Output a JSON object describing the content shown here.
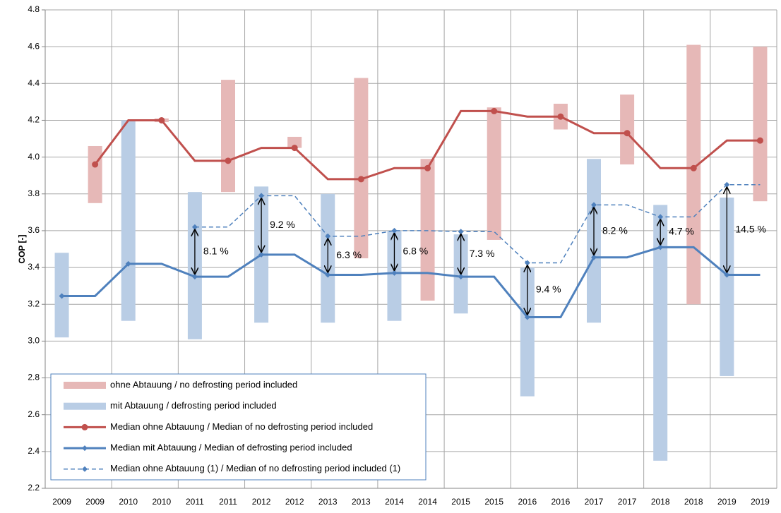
{
  "chart_data": {
    "type": "line",
    "y_label": "COP [-]",
    "categories": [
      "2009",
      "2009",
      "2010",
      "2010",
      "2011",
      "2011",
      "2012",
      "2012",
      "2013",
      "2013",
      "2014",
      "2014",
      "2015",
      "2015",
      "2016",
      "2016",
      "2017",
      "2017",
      "2018",
      "2018",
      "2019",
      "2019"
    ],
    "ylim": [
      2.2,
      4.8
    ],
    "yticks": [
      2.2,
      2.4,
      2.6,
      2.8,
      {
        "value": 3,
        "label": "3.0"
      },
      3.2,
      3.4,
      3.6,
      3.8,
      {
        "value": 4,
        "label": "4.0"
      },
      4.2,
      4.4,
      4.6,
      4.8
    ],
    "grid": true,
    "series": [
      {
        "name": "ohne Abtauung / no defrosting period included",
        "type": "range",
        "color": "#e6b8b7",
        "low": [
          null,
          3.75,
          null,
          4.19,
          null,
          3.81,
          null,
          4.05,
          null,
          3.45,
          null,
          3.22,
          null,
          3.55,
          null,
          4.15,
          null,
          3.96,
          null,
          3.2,
          null,
          3.76
        ],
        "high": [
          null,
          4.06,
          null,
          4.21,
          null,
          4.42,
          null,
          4.11,
          null,
          4.43,
          null,
          3.99,
          null,
          4.27,
          null,
          4.29,
          null,
          4.34,
          null,
          4.61,
          null,
          4.6
        ]
      },
      {
        "name": "mit Abtauung / defrosting period included",
        "type": "range",
        "color": "#b9cde5",
        "low": [
          3.02,
          null,
          3.11,
          null,
          3.01,
          null,
          3.1,
          null,
          3.1,
          null,
          3.11,
          null,
          3.15,
          null,
          2.7,
          null,
          3.1,
          null,
          2.35,
          null,
          2.81,
          null
        ],
        "high": [
          3.48,
          null,
          4.2,
          null,
          3.81,
          null,
          3.84,
          null,
          3.8,
          null,
          3.6,
          null,
          3.58,
          null,
          3.4,
          null,
          3.99,
          null,
          3.74,
          null,
          3.78,
          null
        ]
      },
      {
        "name": "Median ohne Abtauung / Median of no defrosting period included",
        "type": "line",
        "color": "#c0504d",
        "marker": "circle",
        "dashed": false,
        "values": [
          null,
          3.96,
          4.2,
          4.2,
          3.98,
          3.98,
          4.05,
          4.05,
          3.88,
          3.88,
          3.94,
          3.94,
          4.25,
          4.25,
          4.22,
          4.22,
          4.13,
          4.13,
          3.94,
          3.94,
          4.09,
          4.09
        ]
      },
      {
        "name": "Median mit Abtauung / Median of defrosting period included",
        "type": "line",
        "color": "#4f81bd",
        "marker": "diamond",
        "dashed": false,
        "values": [
          3.245,
          3.245,
          3.42,
          3.42,
          3.35,
          3.35,
          3.47,
          3.47,
          3.36,
          3.36,
          3.37,
          3.37,
          3.35,
          3.35,
          3.13,
          3.13,
          3.455,
          3.455,
          3.51,
          3.51,
          3.36,
          3.36
        ]
      },
      {
        "name": "Median ohne Abtauung (1) / Median of no defrosting period included (1)",
        "type": "line",
        "color": "#4f81bd",
        "marker": "diamond",
        "dashed": true,
        "values": [
          null,
          null,
          null,
          null,
          3.62,
          3.62,
          3.79,
          3.79,
          3.57,
          3.57,
          3.6,
          3.6,
          3.595,
          3.595,
          3.425,
          3.425,
          3.74,
          3.74,
          3.675,
          3.675,
          3.85,
          3.85
        ]
      }
    ],
    "annotations": [
      null,
      null,
      null,
      null,
      "8.1 %",
      null,
      "9.2 %",
      null,
      "6.3 %",
      null,
      "6.8 %",
      null,
      "7.3 %",
      null,
      "9.4 %",
      null,
      "8.2 %",
      null,
      "4.7 %",
      null,
      "14.5 %",
      null
    ]
  }
}
